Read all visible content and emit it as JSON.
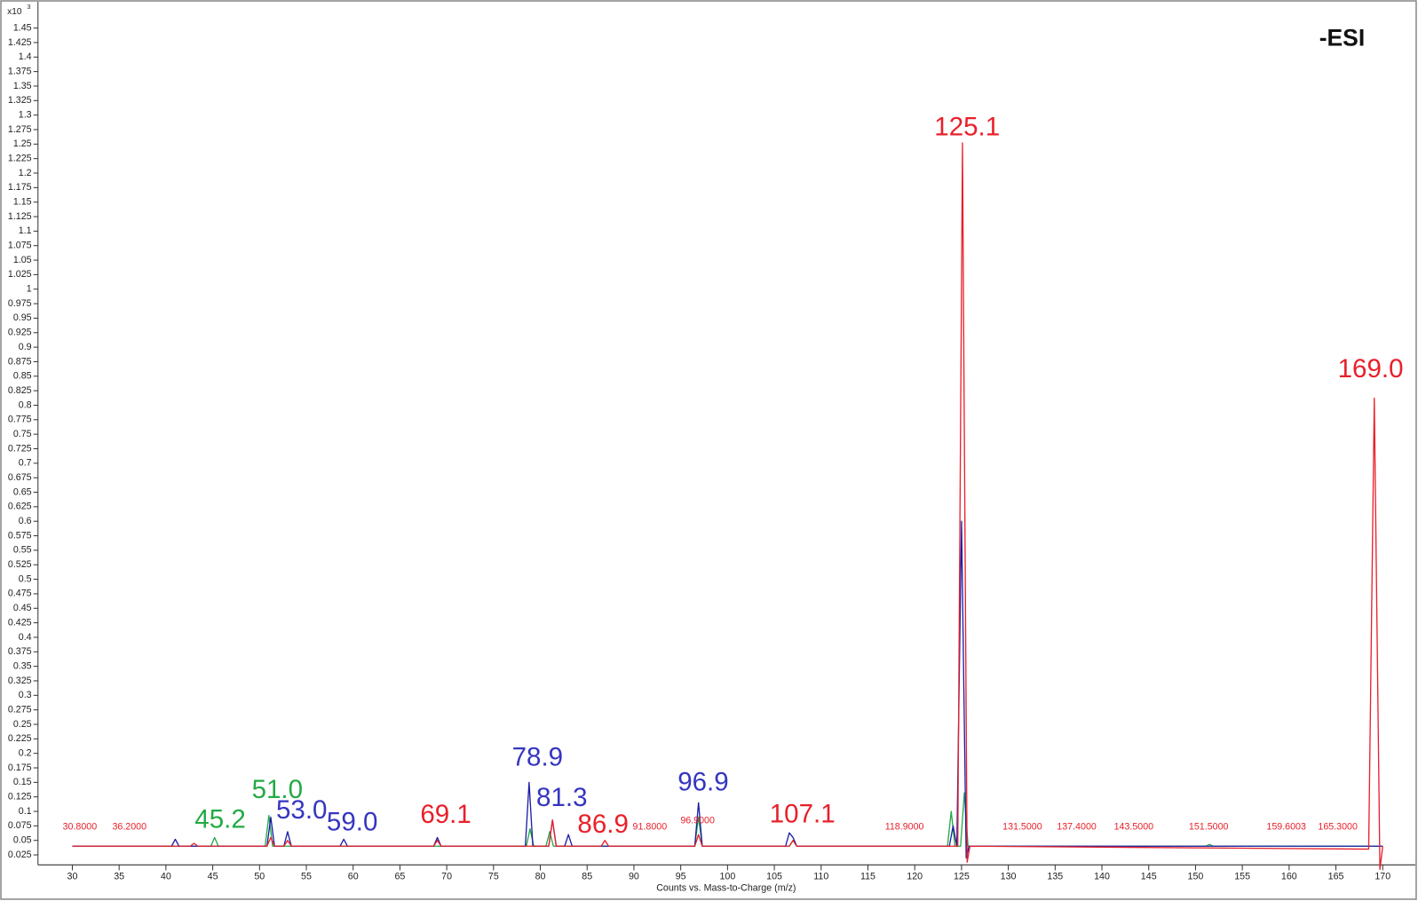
{
  "chart_data": {
    "type": "line",
    "annotation": "-ESI",
    "y_axis_multiplier": "x10",
    "y_axis_exponent": "3",
    "x_axis_label": "Counts vs. Mass-to-Charge (m/z)",
    "xlim": [
      26.33,
      173.48
    ],
    "ylim": [
      0,
      1.475
    ],
    "xticks": [
      30,
      35,
      40,
      45,
      50,
      55,
      60,
      65,
      70,
      75,
      80,
      85,
      90,
      95,
      100,
      105,
      110,
      115,
      120,
      125,
      130,
      135,
      140,
      145,
      150,
      155,
      160,
      165,
      170
    ],
    "yticks": [
      0.025,
      0.05,
      0.075,
      0.1,
      0.125,
      0.15,
      0.175,
      0.2,
      0.225,
      0.25,
      0.275,
      0.3,
      0.325,
      0.35,
      0.375,
      0.4,
      0.425,
      0.45,
      0.475,
      0.5,
      0.525,
      0.55,
      0.575,
      0.6,
      0.625,
      0.65,
      0.675,
      0.7,
      0.725,
      0.75,
      0.775,
      0.8,
      0.825,
      0.85,
      0.875,
      0.9,
      0.925,
      0.95,
      0.975,
      1,
      1.025,
      1.05,
      1.075,
      1.1,
      1.125,
      1.15,
      1.175,
      1.2,
      1.225,
      1.25,
      1.275,
      1.3,
      1.325,
      1.35,
      1.375,
      1.4,
      1.425,
      1.45
    ],
    "series": [
      {
        "color": "#22aa44",
        "x": [
          30,
          44.8,
          45.2,
          45.6,
          50.6,
          51,
          51.4,
          78.5,
          78.9,
          79.3,
          80.6,
          81,
          81.4,
          96.5,
          96.9,
          97.3,
          106.6,
          107,
          107.4,
          123.5,
          123.9,
          124.3,
          124.9,
          125.3,
          125.7,
          151.1,
          151.5,
          151.9,
          170
        ],
        "values": [
          0.04,
          0.04,
          0.055,
          0.04,
          0.04,
          0.093,
          0.04,
          0.04,
          0.07,
          0.04,
          0.04,
          0.065,
          0.04,
          0.04,
          0.09,
          0.04,
          0.04,
          0.05,
          0.04,
          0.04,
          0.1,
          0.04,
          0.04,
          0.132,
          0.04,
          0.04,
          0.043,
          0.04,
          0.04
        ]
      },
      {
        "color": "#1c1ca8",
        "x": [
          30,
          40.6,
          41,
          41.4,
          50.8,
          51.2,
          51.6,
          52.6,
          53,
          53.4,
          58.6,
          59,
          59.4,
          68.6,
          69,
          69.4,
          78.4,
          78.8,
          79.2,
          80.9,
          81.3,
          81.7,
          82.6,
          83,
          83.4,
          96.5,
          96.9,
          97.3,
          106.2,
          106.6,
          107,
          107.4,
          123.7,
          124.1,
          124.5,
          125,
          125.5,
          125.8,
          170
        ],
        "values": [
          0.04,
          0.04,
          0.052,
          0.04,
          0.04,
          0.09,
          0.04,
          0.04,
          0.065,
          0.04,
          0.04,
          0.052,
          0.04,
          0.04,
          0.055,
          0.04,
          0.04,
          0.15,
          0.04,
          0.04,
          0.085,
          0.04,
          0.04,
          0.06,
          0.04,
          0.04,
          0.115,
          0.04,
          0.04,
          0.063,
          0.055,
          0.04,
          0.04,
          0.075,
          0.04,
          0.6,
          0.02,
          0.04,
          0.04
        ]
      },
      {
        "color": "#e8202a",
        "x": [
          30,
          42.6,
          43,
          43.4,
          50.8,
          51.2,
          51.6,
          52.6,
          53,
          53.4,
          68.6,
          69,
          69.4,
          80.9,
          81.3,
          81.7,
          86.5,
          86.9,
          87.3,
          96.5,
          96.9,
          97.3,
          106.6,
          107,
          107.4,
          124.6,
          125.1,
          125.6,
          125.9,
          168.5,
          169.1,
          169.7,
          170
        ],
        "values": [
          0.04,
          0.04,
          0.045,
          0.04,
          0.04,
          0.055,
          0.04,
          0.04,
          0.05,
          0.04,
          0.04,
          0.05,
          0.04,
          0.04,
          0.085,
          0.04,
          0.04,
          0.05,
          0.04,
          0.04,
          0.06,
          0.04,
          0.04,
          0.05,
          0.04,
          0.04,
          1.252,
          0.0125,
          0.04,
          0.035,
          0.812,
          0.0,
          0.04
        ]
      }
    ],
    "peak_labels": [
      {
        "text": "125.1",
        "x": 125.6,
        "y": 1.277,
        "color": "#e8202a",
        "size": "large"
      },
      {
        "text": "169.0",
        "x": 168.7,
        "y": 0.86,
        "color": "#e8202a",
        "size": "large"
      },
      {
        "text": "69.1",
        "x": 69.9,
        "y": 0.092,
        "color": "#e8202a",
        "size": "large"
      },
      {
        "text": "86.9",
        "x": 86.7,
        "y": 0.075,
        "color": "#e8202a",
        "size": "large"
      },
      {
        "text": "107.1",
        "x": 108.0,
        "y": 0.093,
        "color": "#e8202a",
        "size": "large"
      },
      {
        "text": "78.9",
        "x": 79.7,
        "y": 0.191,
        "color": "#3535c0",
        "size": "large"
      },
      {
        "text": "81.3",
        "x": 82.3,
        "y": 0.121,
        "color": "#3535c0",
        "size": "large"
      },
      {
        "text": "96.9",
        "x": 97.4,
        "y": 0.148,
        "color": "#3535c0",
        "size": "large"
      },
      {
        "text": "53.0",
        "x": 54.5,
        "y": 0.1,
        "color": "#3535c0",
        "size": "large"
      },
      {
        "text": "59.0",
        "x": 59.9,
        "y": 0.079,
        "color": "#3535c0",
        "size": "large"
      },
      {
        "text": "45.2",
        "x": 45.8,
        "y": 0.084,
        "color": "#22aa44",
        "size": "large"
      },
      {
        "text": "51.0",
        "x": 51.9,
        "y": 0.135,
        "color": "#22aa44",
        "size": "large"
      },
      {
        "text": "30.8000",
        "x": 30.8,
        "y": 0.073,
        "color": "#e8202a",
        "size": "small"
      },
      {
        "text": "36.2000",
        "x": 36.1,
        "y": 0.073,
        "color": "#e8202a",
        "size": "small"
      },
      {
        "text": "91.8000",
        "x": 91.7,
        "y": 0.073,
        "color": "#e8202a",
        "size": "small"
      },
      {
        "text": "96.9000",
        "x": 96.8,
        "y": 0.084,
        "color": "#e8202a",
        "size": "small"
      },
      {
        "text": "118.9000",
        "x": 118.9,
        "y": 0.073,
        "color": "#e8202a",
        "size": "small"
      },
      {
        "text": "131.5000",
        "x": 131.5,
        "y": 0.073,
        "color": "#e8202a",
        "size": "small"
      },
      {
        "text": "137.4000",
        "x": 137.3,
        "y": 0.073,
        "color": "#e8202a",
        "size": "small"
      },
      {
        "text": "143.5000",
        "x": 143.4,
        "y": 0.073,
        "color": "#e8202a",
        "size": "small"
      },
      {
        "text": "151.5000",
        "x": 151.4,
        "y": 0.073,
        "color": "#e8202a",
        "size": "small"
      },
      {
        "text": "159.6003",
        "x": 159.7,
        "y": 0.073,
        "color": "#e8202a",
        "size": "small"
      },
      {
        "text": "165.3000",
        "x": 165.2,
        "y": 0.073,
        "color": "#e8202a",
        "size": "small"
      }
    ]
  }
}
